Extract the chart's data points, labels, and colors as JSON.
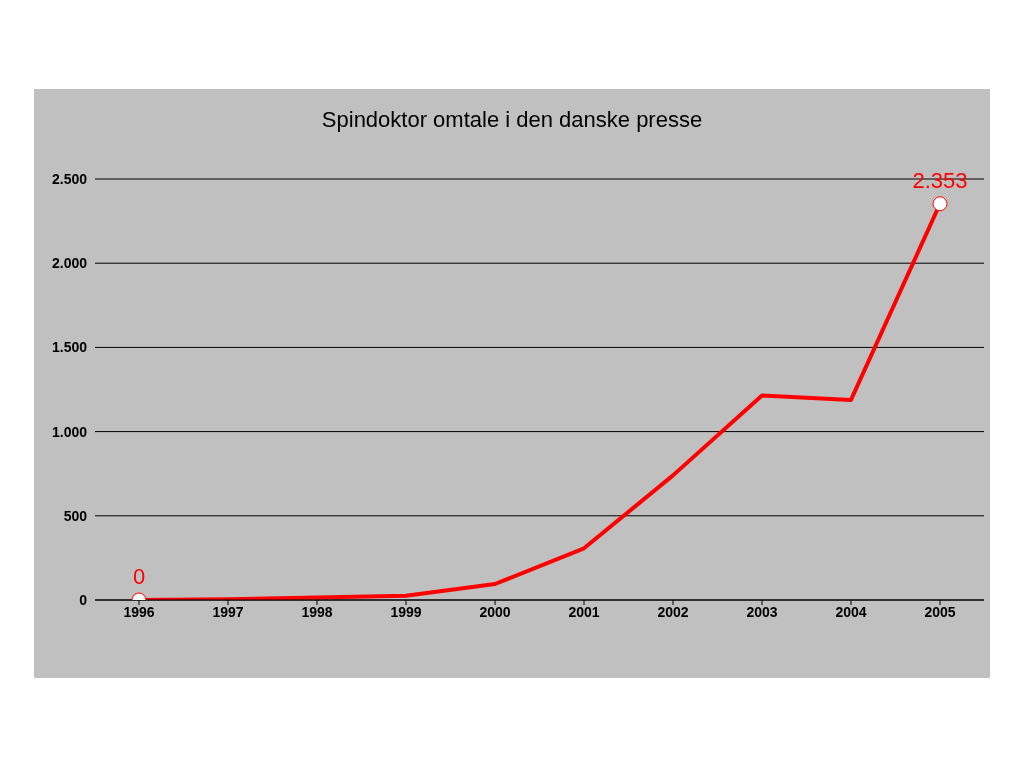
{
  "chart_data": {
    "type": "line",
    "title": "Spindoktor omtale i den danske presse",
    "categories": [
      "1996",
      "1997",
      "1998",
      "1999",
      "2000",
      "2001",
      "2002",
      "2003",
      "2004",
      "2005"
    ],
    "series": [
      {
        "color": "#ff0000",
        "values": [
          0,
          5,
          15,
          25,
          95,
          307,
          740,
          1215,
          1188,
          2353
        ],
        "value_labels": [
          "0",
          null,
          null,
          null,
          null,
          null,
          null,
          null,
          null,
          "2.353"
        ]
      }
    ],
    "ylim": [
      0,
      2500
    ],
    "yticks": [
      {
        "value": 0,
        "label": "0"
      },
      {
        "value": 500,
        "label": "500"
      },
      {
        "value": 1000,
        "label": "1.000"
      },
      {
        "value": 1500,
        "label": "1.500"
      },
      {
        "value": 2000,
        "label": "2.000"
      },
      {
        "value": 2500,
        "label": "2.500"
      }
    ],
    "grid": "y",
    "legend": false
  }
}
